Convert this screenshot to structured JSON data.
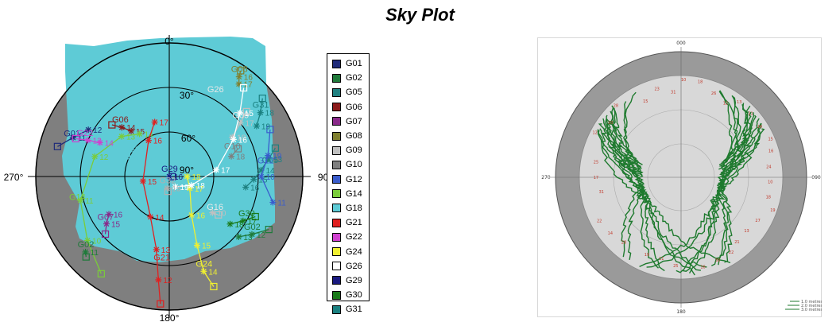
{
  "title": "Sky Plot",
  "left_plot": {
    "azimuth_labels": [
      "0°",
      "90°",
      "180°",
      "270°"
    ],
    "elevation_labels": [
      "30°",
      "60°",
      "90°"
    ],
    "colors": {
      "sky": "#5ecbd6",
      "obstruction": "#7f7f7f",
      "grid": "#000000"
    }
  },
  "legend": {
    "items": [
      {
        "label": "G01",
        "color": "#1f2b7a"
      },
      {
        "label": "G02",
        "color": "#1f7a3a"
      },
      {
        "label": "G05",
        "color": "#1f8080"
      },
      {
        "label": "G06",
        "color": "#8b1a1a"
      },
      {
        "label": "G07",
        "color": "#8a2a8a"
      },
      {
        "label": "G08",
        "color": "#808030"
      },
      {
        "label": "G09",
        "color": "#c0c0c0"
      },
      {
        "label": "G10",
        "color": "#7f7f7f"
      },
      {
        "label": "G12",
        "color": "#3a5ccc"
      },
      {
        "label": "G14",
        "color": "#7acc3a"
      },
      {
        "label": "G18",
        "color": "#5ecbd6"
      },
      {
        "label": "G21",
        "color": "#e02020"
      },
      {
        "label": "G22",
        "color": "#d040d0"
      },
      {
        "label": "G24",
        "color": "#f0f030"
      },
      {
        "label": "G26",
        "color": "#ffffff"
      },
      {
        "label": "G29",
        "color": "#1a1a80"
      },
      {
        "label": "G30",
        "color": "#1a7a1a"
      },
      {
        "label": "G31",
        "color": "#1a8080"
      }
    ]
  },
  "chart_data": [
    {
      "type": "scatter",
      "subtype": "polar-skyplot",
      "title": "Sky Plot",
      "axis": {
        "azimuth_ticks": [
          "0°",
          "90°",
          "180°",
          "270°"
        ],
        "elevation_ticks": [
          "30°",
          "60°",
          "90°"
        ],
        "elevation_range": [
          0,
          90
        ]
      },
      "series": [
        {
          "name": "G01",
          "color": "#1f2b7a",
          "label_az": 290,
          "label_el": 20,
          "points": [
            [
              285,
              12
            ],
            [
              292,
              20
            ],
            [
              300,
              27
            ]
          ]
        },
        {
          "name": "G02",
          "color": "#1f7a3a",
          "label_az": 125,
          "label_el": 22,
          "points": [
            [
              118,
              14
            ],
            [
              125,
              22
            ],
            [
              131,
              28
            ]
          ]
        },
        {
          "name": "G05",
          "color": "#1f8080",
          "label_az": 85,
          "label_el": 22,
          "points": [
            [
              75,
              16
            ],
            [
              80,
              22
            ],
            [
              86,
              28
            ],
            [
              92,
              33
            ],
            [
              98,
              38
            ]
          ]
        },
        {
          "name": "G06",
          "color": "#8b1a1a",
          "label_az": 315,
          "label_el": 43,
          "points": [
            [
              312,
              38
            ],
            [
              316,
              44
            ],
            [
              320,
              50
            ]
          ]
        },
        {
          "name": "G07",
          "color": "#8a2a8a",
          "label_az": 233,
          "label_el": 36,
          "points": [
            [
              228,
              32
            ],
            [
              233,
              37
            ],
            [
              238,
              42
            ]
          ]
        },
        {
          "name": "G08",
          "color": "#808030",
          "label_az": 35,
          "label_el": 8,
          "points": [
            [
              34,
              4
            ],
            [
              35,
              8
            ],
            [
              37,
              12
            ]
          ]
        },
        {
          "name": "G09",
          "color": "#c0c0c0",
          "label_az": 53,
          "label_el": 30,
          "points": [
            [
              50,
              22
            ],
            [
              53,
              30
            ],
            [
              58,
              40
            ]
          ]
        },
        {
          "name": "G10",
          "color": "#7f7f7f",
          "label_az": 70,
          "label_el": 45,
          "points": [
            [
              68,
              40
            ],
            [
              72,
              46
            ]
          ]
        },
        {
          "name": "G12",
          "color": "#3a5ccc",
          "label_az": 85,
          "label_el": 25,
          "points": [
            [
              65,
              15
            ],
            [
              78,
              22
            ],
            [
              90,
              28
            ],
            [
              104,
              18
            ]
          ]
        },
        {
          "name": "G14",
          "color": "#7acc3a",
          "label_az": 253,
          "label_el": 25,
          "points": [
            [
              215,
              10
            ],
            [
              232,
              20
            ],
            [
              255,
              28
            ],
            [
              285,
              38
            ],
            [
              310,
              48
            ],
            [
              325,
              55
            ]
          ]
        },
        {
          "name": "G18",
          "color": "#5ecbd6",
          "label_az": 300,
          "label_el": 64,
          "points": [
            [
              296,
              58
            ],
            [
              300,
              64
            ],
            [
              305,
              70
            ]
          ]
        },
        {
          "name": "G21",
          "color": "#e02020",
          "label_az": 185,
          "label_el": 30,
          "points": [
            [
              184,
              4
            ],
            [
              186,
              20
            ],
            [
              190,
              40
            ],
            [
              205,
              60
            ],
            [
              260,
              72
            ],
            [
              330,
              62
            ],
            [
              345,
              52
            ]
          ]
        },
        {
          "name": "G22",
          "color": "#d040d0",
          "label_az": 293,
          "label_el": 28,
          "points": [
            [
              292,
              22
            ],
            [
              294,
              30
            ],
            [
              296,
              38
            ]
          ]
        },
        {
          "name": "G24",
          "color": "#f0f030",
          "label_az": 160,
          "label_el": 22,
          "points": [
            [
              158,
              10
            ],
            [
              160,
              22
            ],
            [
              158,
              40
            ],
            [
              150,
              60
            ],
            [
              120,
              74
            ],
            [
              90,
              78
            ]
          ]
        },
        {
          "name": "G26",
          "color": "#ffffff",
          "label_az": 30,
          "label_el": 28,
          "points": [
            [
              40,
              12
            ],
            [
              48,
              26
            ],
            [
              60,
              40
            ],
            [
              82,
              58
            ],
            [
              112,
              74
            ],
            [
              150,
              82
            ]
          ]
        },
        {
          "name": "G29",
          "color": "#1a1a80",
          "label_az": 92,
          "label_el": 90,
          "points": [
            [
              92,
              88
            ],
            [
              95,
              90
            ]
          ]
        },
        {
          "name": "G30",
          "color": "#1a7a1a",
          "label_az": 120,
          "label_el": 30,
          "points": [
            [
              115,
              26
            ],
            [
              121,
              32
            ],
            [
              128,
              38
            ]
          ]
        },
        {
          "name": "G31",
          "color": "#1a8080",
          "label_az": 55,
          "label_el": 15,
          "points": [
            [
              50,
              8
            ],
            [
              55,
              15
            ],
            [
              60,
              22
            ]
          ]
        },
        {
          "name": "G32",
          "color": "#b0b0b0",
          "label_az": 190,
          "label_el": 82,
          "points": [
            [
              185,
              80
            ],
            [
              190,
              82
            ]
          ]
        },
        {
          "name": "G16",
          "color": "#c0c0c0",
          "label_az": 130,
          "label_el": 50,
          "points": [
            [
              128,
              48
            ],
            [
              130,
              52
            ]
          ]
        },
        {
          "name": "G02b",
          "color": "#1f7a3a",
          "label_az": 228,
          "label_el": 14,
          "points": [
            [
              226,
              12
            ],
            [
              228,
              14
            ]
          ]
        }
      ],
      "point_labels": [
        "10",
        "11",
        "12",
        "13",
        "14",
        "15",
        "16",
        "17",
        "18",
        "19"
      ]
    },
    {
      "type": "scatter",
      "subtype": "polar-multipath",
      "axis": {
        "azimuth_ticks": [
          "000",
          "090",
          "180",
          "270"
        ]
      },
      "legend": [
        "1.0 metres",
        "2.0 metres",
        "3.0 metres"
      ],
      "colors": {
        "tracks": "#1e7a2e",
        "annulus": "#9a9a9a",
        "inner": "#d8d8d8",
        "labels": "#c0392b"
      }
    }
  ]
}
